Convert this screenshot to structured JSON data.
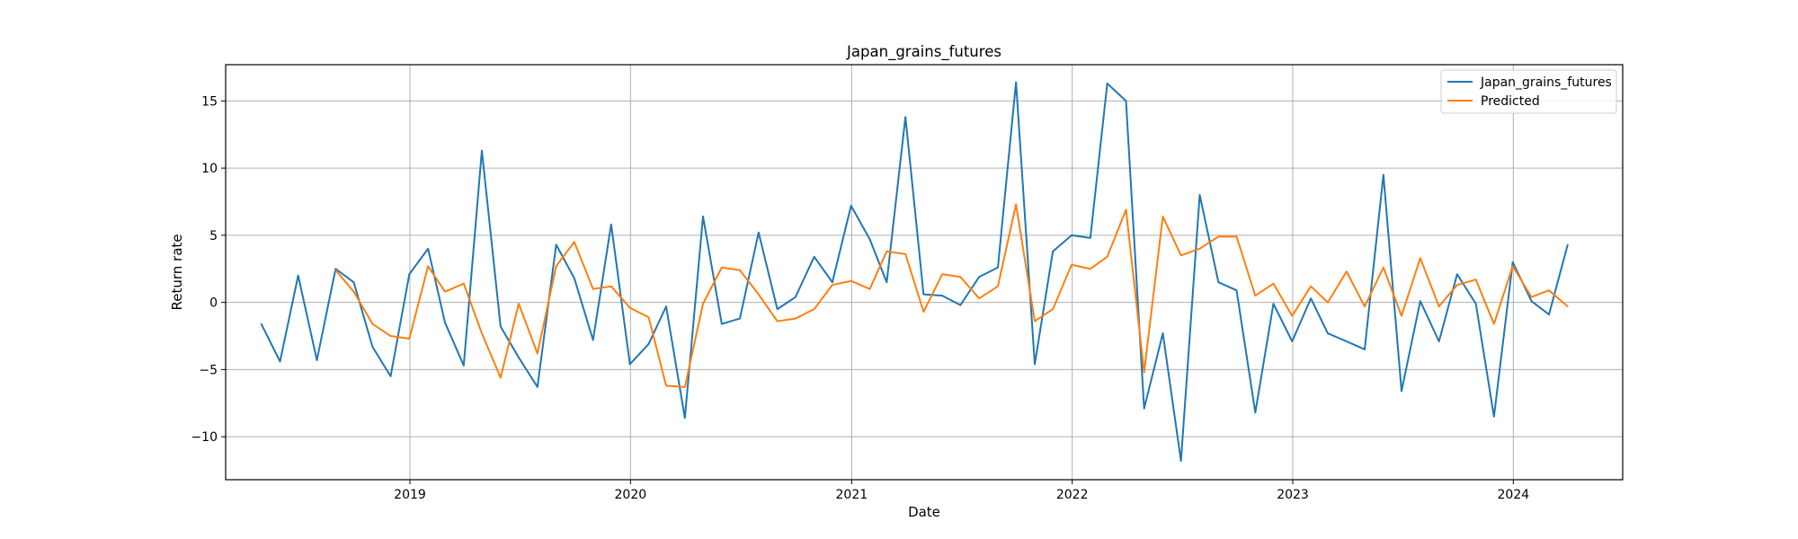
{
  "chart_data": {
    "type": "line",
    "title": "Japan_grains_futures",
    "xlabel": "Date",
    "ylabel": "Return rate",
    "xlim": [
      "2018-03-02",
      "2024-06-30"
    ],
    "ylim": [
      -13.2,
      17.7
    ],
    "x_ticks": [
      "2019-01-01",
      "2020-01-01",
      "2021-01-01",
      "2022-01-01",
      "2023-01-01",
      "2024-01-01"
    ],
    "x_tick_labels": [
      "2019",
      "2020",
      "2021",
      "2022",
      "2023",
      "2024"
    ],
    "y_ticks": [
      -10,
      -5,
      0,
      5,
      10,
      15
    ],
    "y_tick_labels": [
      "−10",
      "−5",
      "0",
      "5",
      "10",
      "15"
    ],
    "grid": true,
    "legend_position": "top-right",
    "series": [
      {
        "name": "Japan_grains_futures",
        "color": "#1f77b4",
        "x": [
          "2018-04-30",
          "2018-05-31",
          "2018-06-30",
          "2018-07-31",
          "2018-08-31",
          "2018-09-30",
          "2018-10-31",
          "2018-11-30",
          "2018-12-31",
          "2019-01-31",
          "2019-02-28",
          "2019-03-31",
          "2019-04-30",
          "2019-05-31",
          "2019-06-30",
          "2019-07-31",
          "2019-08-31",
          "2019-09-30",
          "2019-10-31",
          "2019-11-30",
          "2019-12-31",
          "2020-01-31",
          "2020-02-29",
          "2020-03-31",
          "2020-04-30",
          "2020-05-31",
          "2020-06-30",
          "2020-07-31",
          "2020-08-31",
          "2020-09-30",
          "2020-10-31",
          "2020-11-30",
          "2020-12-31",
          "2021-01-31",
          "2021-02-28",
          "2021-03-31",
          "2021-04-30",
          "2021-05-31",
          "2021-06-30",
          "2021-07-31",
          "2021-08-31",
          "2021-09-30",
          "2021-10-31",
          "2021-11-30",
          "2021-12-31",
          "2022-01-31",
          "2022-02-28",
          "2022-03-31",
          "2022-04-30",
          "2022-05-31",
          "2022-06-30",
          "2022-07-31",
          "2022-08-31",
          "2022-09-30",
          "2022-10-31",
          "2022-11-30",
          "2022-12-31",
          "2023-01-31",
          "2023-02-28",
          "2023-03-31",
          "2023-04-30",
          "2023-05-31",
          "2023-06-30",
          "2023-07-31",
          "2023-08-31",
          "2023-09-30",
          "2023-10-31",
          "2023-11-30",
          "2023-12-31",
          "2024-01-31",
          "2024-02-29",
          "2024-03-31"
        ],
        "values": [
          -1.6,
          -4.4,
          2.0,
          -4.3,
          2.5,
          1.5,
          -3.3,
          -5.5,
          2.1,
          4.0,
          -1.5,
          -4.7,
          11.3,
          -1.8,
          -4.1,
          -6.3,
          4.3,
          1.8,
          -2.8,
          5.8,
          -4.6,
          -3.1,
          -0.3,
          -8.6,
          6.4,
          -1.6,
          -1.2,
          5.2,
          -0.5,
          0.4,
          3.4,
          1.5,
          7.2,
          4.7,
          1.5,
          13.8,
          0.6,
          0.5,
          -0.2,
          1.9,
          2.6,
          16.4,
          -4.6,
          3.8,
          5.0,
          4.8,
          16.3,
          15.0,
          -7.9,
          -2.3,
          -11.8,
          8.0,
          1.5,
          0.9,
          -8.2,
          -0.1,
          -2.9,
          0.3,
          -2.3,
          -2.9,
          -3.5,
          9.5,
          -6.6,
          0.1,
          -2.9,
          2.1,
          -0.1,
          -8.5,
          3.0,
          0.1,
          -0.9,
          4.3
        ]
      },
      {
        "name": "Predicted",
        "color": "#ff7f0e",
        "x": [
          "2018-08-31",
          "2018-09-30",
          "2018-10-31",
          "2018-11-30",
          "2018-12-31",
          "2019-01-31",
          "2019-02-28",
          "2019-03-31",
          "2019-04-30",
          "2019-05-31",
          "2019-06-30",
          "2019-07-31",
          "2019-08-31",
          "2019-09-30",
          "2019-10-31",
          "2019-11-30",
          "2019-12-31",
          "2020-01-31",
          "2020-02-29",
          "2020-03-31",
          "2020-04-30",
          "2020-05-31",
          "2020-06-30",
          "2020-07-31",
          "2020-08-31",
          "2020-09-30",
          "2020-10-31",
          "2020-11-30",
          "2020-12-31",
          "2021-01-31",
          "2021-02-28",
          "2021-03-31",
          "2021-04-30",
          "2021-05-31",
          "2021-06-30",
          "2021-07-31",
          "2021-08-31",
          "2021-09-30",
          "2021-10-31",
          "2021-11-30",
          "2021-12-31",
          "2022-01-31",
          "2022-02-28",
          "2022-03-31",
          "2022-04-30",
          "2022-05-31",
          "2022-06-30",
          "2022-07-31",
          "2022-08-31",
          "2022-09-30",
          "2022-10-31",
          "2022-11-30",
          "2022-12-31",
          "2023-01-31",
          "2023-02-28",
          "2023-03-31",
          "2023-04-30",
          "2023-05-31",
          "2023-06-30",
          "2023-07-31",
          "2023-08-31",
          "2023-09-30",
          "2023-10-31",
          "2023-11-30",
          "2023-12-31",
          "2024-01-31",
          "2024-02-29",
          "2024-03-31"
        ],
        "values": [
          2.4,
          0.8,
          -1.6,
          -2.5,
          -2.7,
          2.7,
          0.8,
          1.4,
          -2.3,
          -5.6,
          -0.1,
          -3.8,
          2.7,
          4.5,
          1.0,
          1.2,
          -0.4,
          -1.1,
          -6.2,
          -6.3,
          -0.1,
          2.6,
          2.4,
          0.6,
          -1.4,
          -1.2,
          -0.5,
          1.3,
          1.6,
          1.0,
          3.8,
          3.6,
          -0.7,
          2.1,
          1.9,
          0.3,
          1.2,
          7.3,
          -1.4,
          -0.5,
          2.8,
          2.5,
          3.4,
          6.9,
          -5.2,
          6.4,
          3.5,
          4.0,
          4.9,
          4.9,
          0.5,
          1.4,
          -1.0,
          1.2,
          0.0,
          2.3,
          -0.3,
          2.6,
          -1.0,
          3.3,
          -0.3,
          1.3,
          1.7,
          -1.6,
          2.7,
          0.4,
          0.9,
          -0.3
        ]
      }
    ]
  }
}
